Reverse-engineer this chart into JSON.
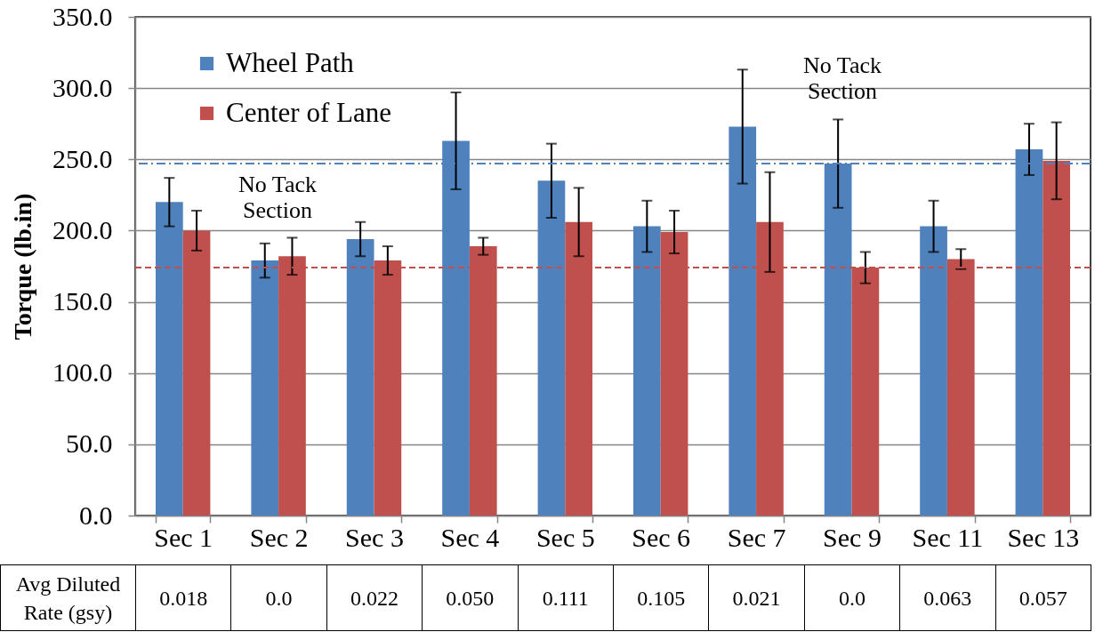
{
  "chart_data": {
    "type": "bar",
    "ylabel": "Torque (lb.in)",
    "categories": [
      "Sec 1",
      "Sec 2",
      "Sec 3",
      "Sec 4",
      "Sec 5",
      "Sec 6",
      "Sec 7",
      "Sec 9",
      "Sec 11",
      "Sec 13"
    ],
    "series": [
      {
        "name": "Wheel Path",
        "color": "#4f81bd",
        "values": [
          220,
          179,
          194,
          263,
          235,
          203,
          273,
          247,
          203,
          257
        ],
        "errors": [
          17,
          12,
          12,
          34,
          26,
          18,
          40,
          31,
          18,
          18
        ]
      },
      {
        "name": "Center of Lane",
        "color": "#c0504d",
        "values": [
          200,
          182,
          179,
          189,
          206,
          199,
          206,
          174,
          180,
          249
        ],
        "errors": [
          14,
          13,
          10,
          6,
          24,
          15,
          35,
          11,
          7,
          27
        ]
      }
    ],
    "ylim": [
      0,
      350
    ],
    "yticks": [
      {
        "value": 0,
        "label": "0.0"
      },
      {
        "value": 50,
        "label": "50.0"
      },
      {
        "value": 100,
        "label": "100.0"
      },
      {
        "value": 150,
        "label": "150.0"
      },
      {
        "value": 200,
        "label": "200.0"
      },
      {
        "value": 250,
        "label": "250.0"
      },
      {
        "value": 300,
        "label": "300.0"
      },
      {
        "value": 350,
        "label": "350.0"
      }
    ],
    "grid": "y",
    "legend": "top left",
    "ref_lines": [
      {
        "axis": "y",
        "value": 247,
        "color": "#4f81bd",
        "line_style": "dashdot"
      },
      {
        "axis": "y",
        "value": 174,
        "color": "#c0504d",
        "line_style": "dashed"
      }
    ],
    "annotations": [
      "No Tack Section",
      "No Tack Section",
      "Avg Diluted Rate (gsy)",
      "0.018",
      "0.0",
      "0.022",
      "0.050",
      "0.111",
      "0.105",
      "0.021",
      "0.0",
      "0.063",
      "0.057"
    ]
  }
}
